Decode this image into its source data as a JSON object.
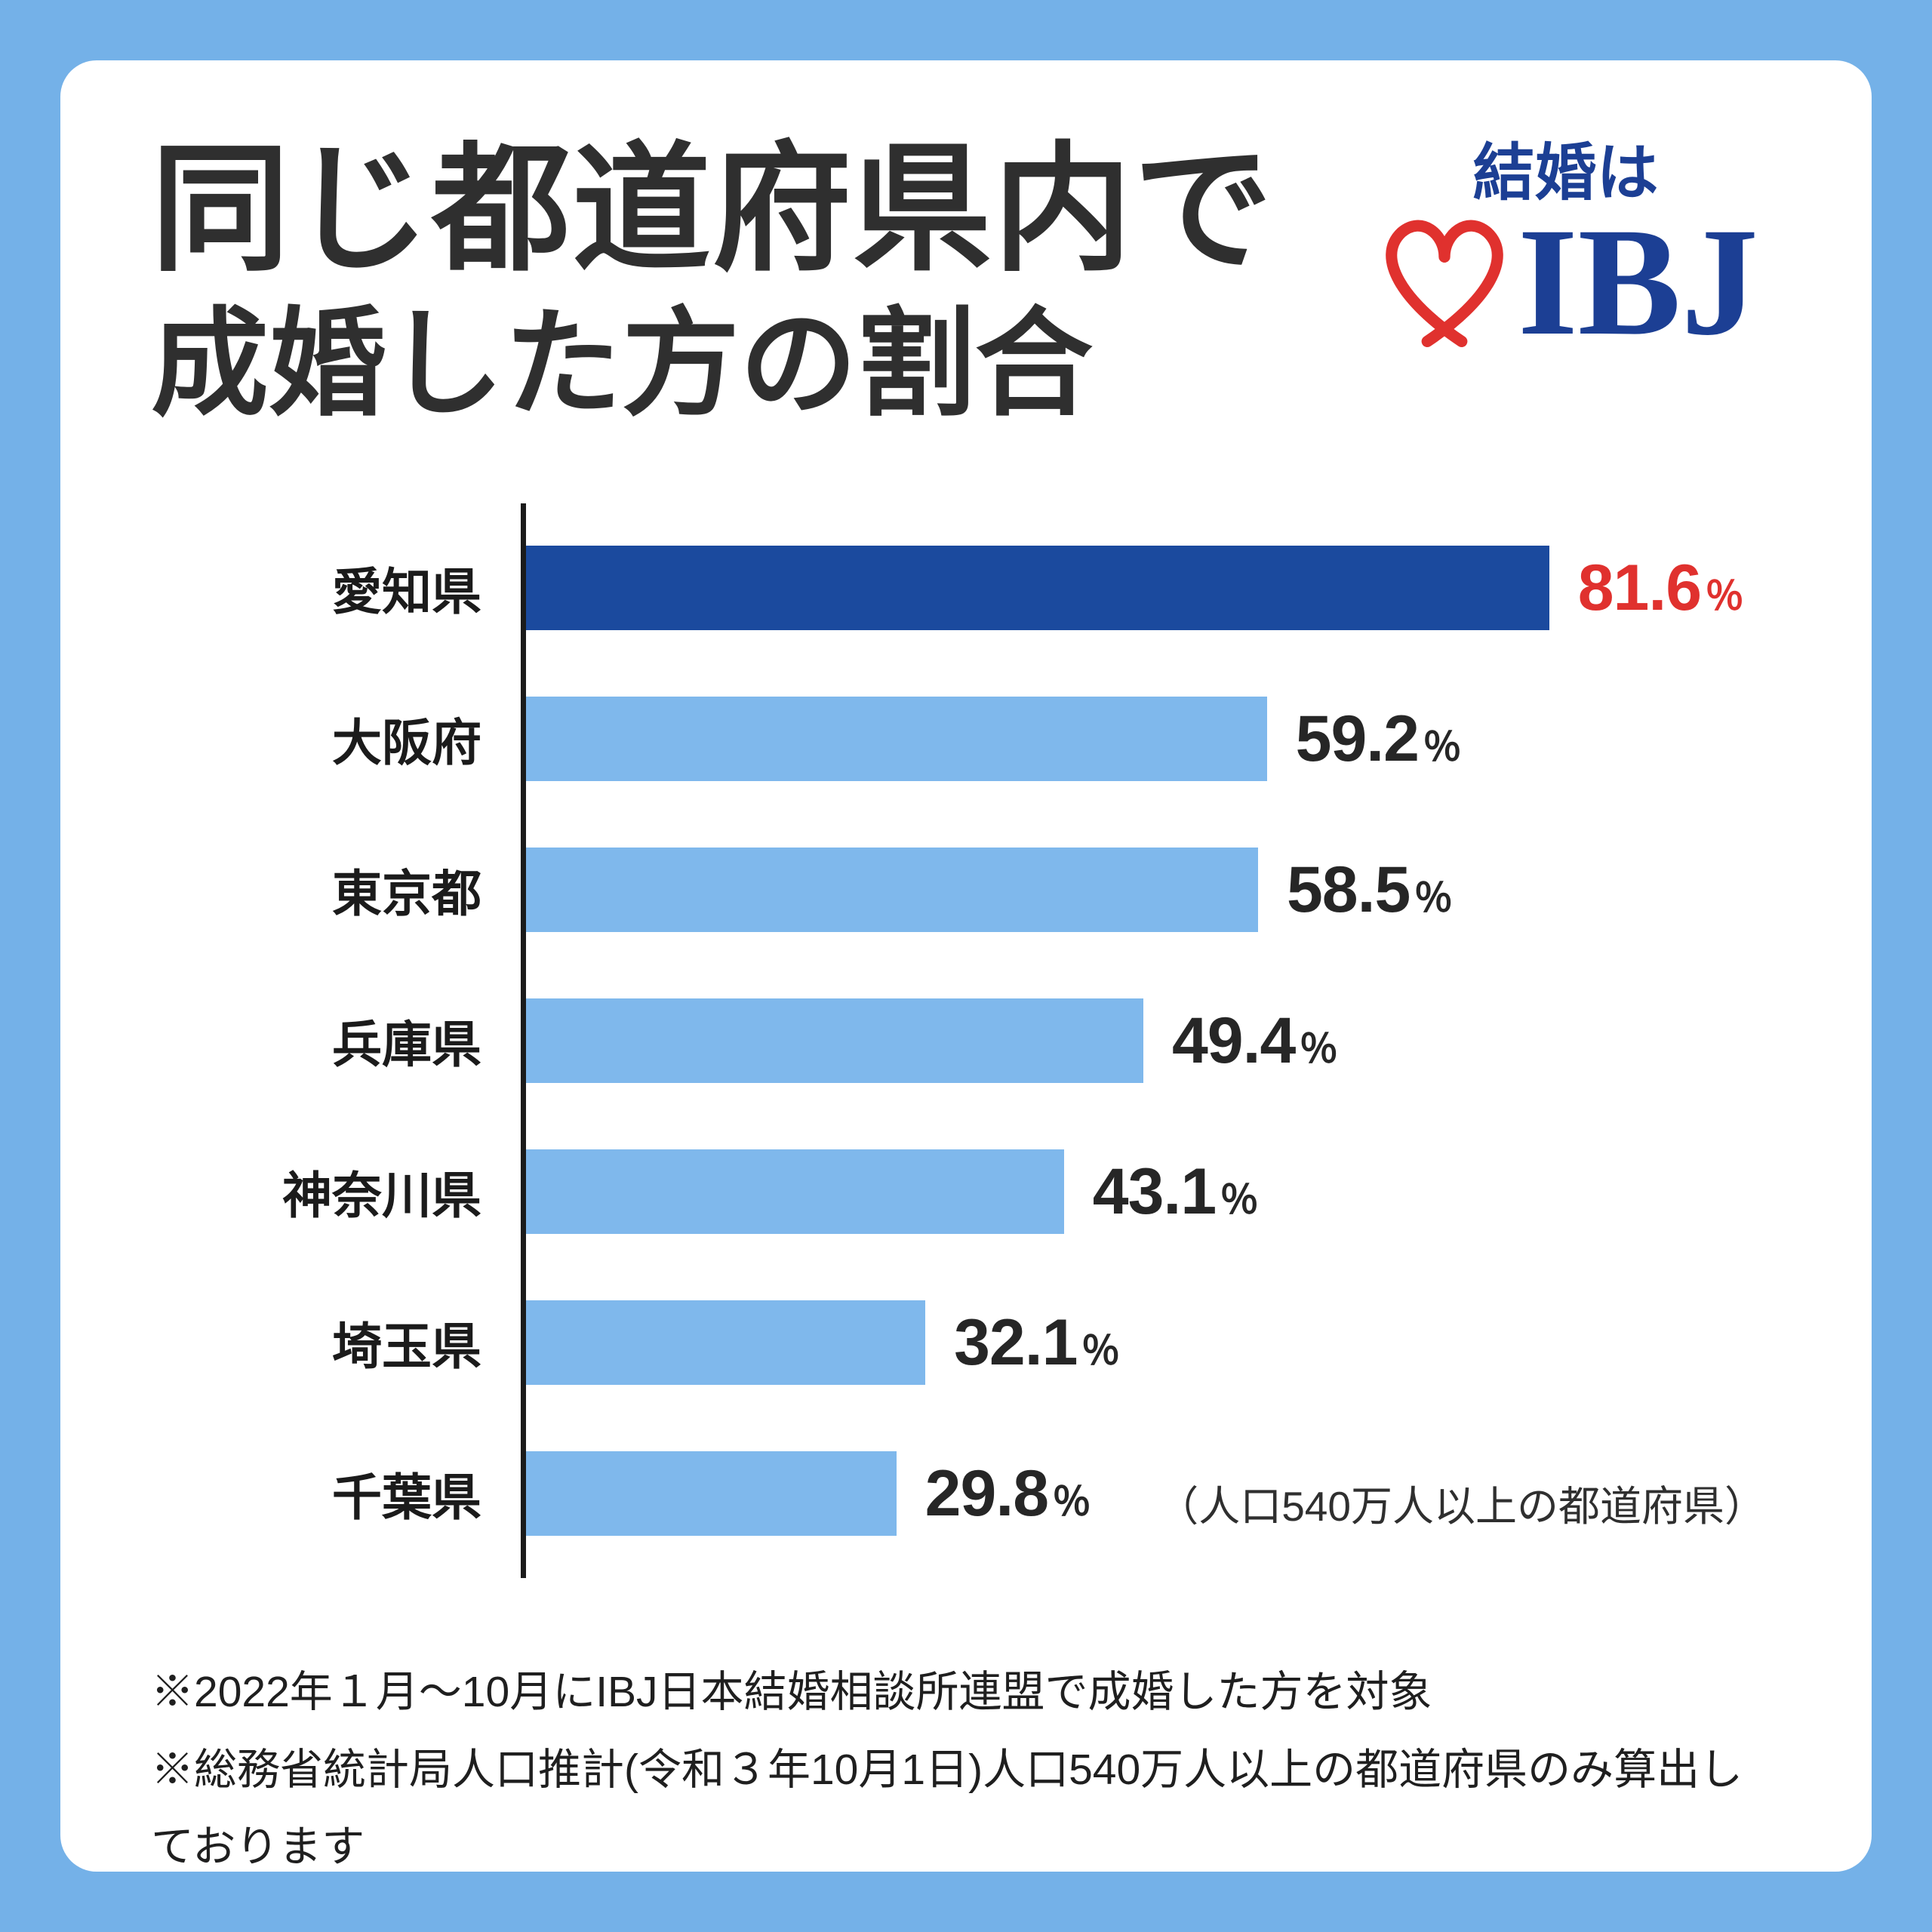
{
  "page": {
    "background_color": "#74b1e8",
    "card_color": "#ffffff"
  },
  "header": {
    "title_line1": "同じ都道府県内で",
    "title_line2": "成婚した方の割合",
    "logo": {
      "tagline": "結婚は",
      "brand": "IBJ",
      "heart_color": "#e0312e",
      "brand_color": "#1c3f94"
    }
  },
  "chart_data": {
    "type": "bar",
    "orientation": "horizontal",
    "title": "同じ都道府県内で成婚した方の割合",
    "categories": [
      "愛知県",
      "大阪府",
      "東京都",
      "兵庫県",
      "神奈川県",
      "埼玉県",
      "千葉県"
    ],
    "values": [
      81.6,
      59.2,
      58.5,
      49.4,
      43.1,
      32.1,
      29.8
    ],
    "value_suffix": "％",
    "xlim": [
      0,
      100
    ],
    "grid": false,
    "legend": false,
    "highlight_index": 0,
    "highlight_bar_color": "#1b4a9e",
    "bar_color": "#7fb8ec",
    "highlight_value_color": "#e0312e",
    "value_color": "#262626",
    "axis_color": "#1b1b1b",
    "note": "（人口540万人以上の都道府県）"
  },
  "footnotes": [
    "※2022年１月～10月にIBJ日本結婚相談所連盟で成婚した方を対象",
    "※総務省統計局人口推計(令和３年10月1日)人口540万人以上の都道府県のみ算出しております"
  ]
}
